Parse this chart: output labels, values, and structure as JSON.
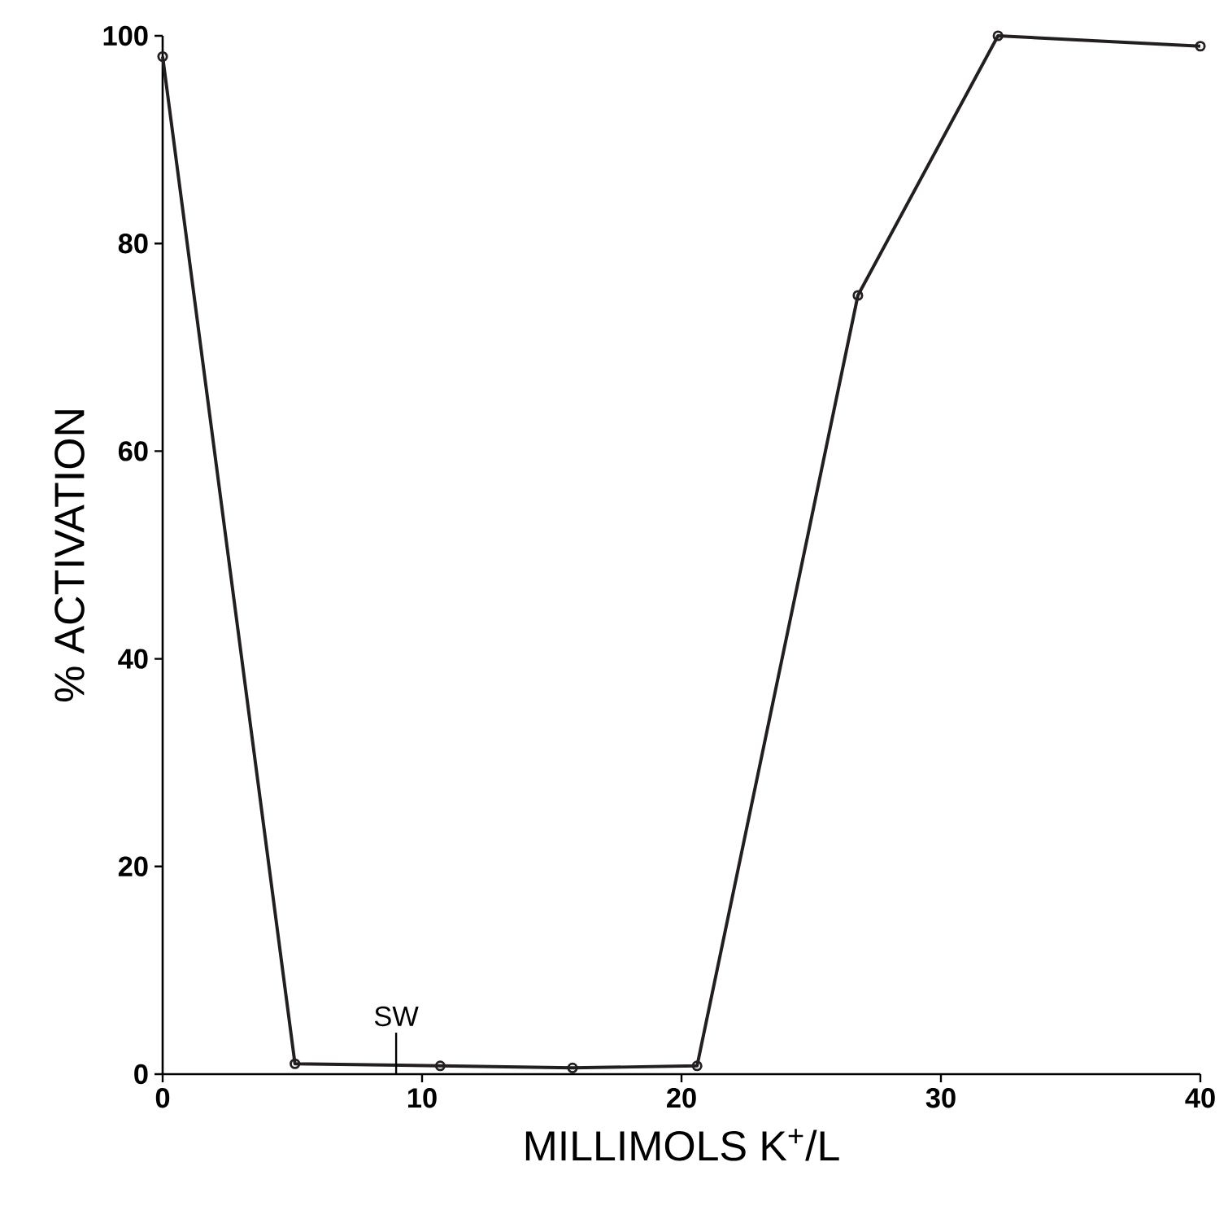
{
  "chart_data": {
    "type": "line",
    "xlabel": "MILLIMOLS K$^{+}$/L",
    "ylabel": "% ACTIVATION",
    "x": [
      0,
      5.1,
      10.7,
      15.8,
      20.6,
      26.8,
      32.2,
      40
    ],
    "series": [
      {
        "color": "#231f20",
        "values": [
          98,
          1,
          0.8,
          0.6,
          0.8,
          75,
          100,
          99
        ]
      }
    ],
    "xlim": [
      0,
      40
    ],
    "ylim": [
      0,
      100
    ],
    "xticks": [
      0,
      10,
      20,
      30,
      40
    ],
    "yticks": [
      0,
      20,
      40,
      60,
      80,
      100
    ],
    "ref_lines": [
      {
        "axis": "x",
        "value": 9,
        "label": "SW"
      }
    ],
    "marker": "circle",
    "line_style": "solid"
  }
}
